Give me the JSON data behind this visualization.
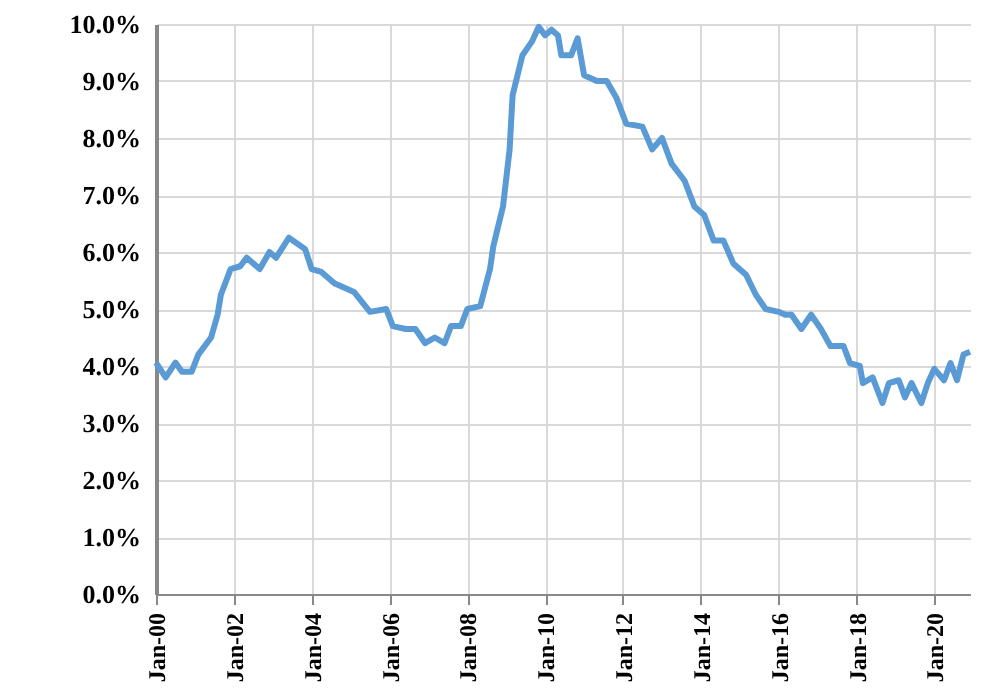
{
  "chart_data": {
    "type": "line",
    "x": [
      "2000-01",
      "2000-04",
      "2000-07",
      "2000-09",
      "2000-12",
      "2001-02",
      "2001-06",
      "2001-08",
      "2001-09",
      "2001-12",
      "2002-03",
      "2002-05",
      "2002-09",
      "2002-12",
      "2003-02",
      "2003-06",
      "2003-11",
      "2004-01",
      "2004-04",
      "2004-08",
      "2005-02",
      "2005-07",
      "2005-12",
      "2006-02",
      "2006-06",
      "2006-09",
      "2006-12",
      "2007-03",
      "2007-06",
      "2007-08",
      "2007-11",
      "2008-01",
      "2008-05",
      "2008-08",
      "2008-09",
      "2008-12",
      "2009-02",
      "2009-03",
      "2009-06",
      "2009-09",
      "2009-11",
      "2010-01",
      "2010-03",
      "2010-05",
      "2010-06",
      "2010-09",
      "2010-11",
      "2011-01",
      "2011-05",
      "2011-08",
      "2011-11",
      "2012-02",
      "2012-07",
      "2012-10",
      "2013-01",
      "2013-04",
      "2013-08",
      "2013-11",
      "2014-02",
      "2014-05",
      "2014-08",
      "2014-11",
      "2015-03",
      "2015-06",
      "2015-09",
      "2016-01",
      "2016-03",
      "2016-05",
      "2016-08",
      "2016-11",
      "2017-02",
      "2017-05",
      "2017-09",
      "2017-11",
      "2018-02",
      "2018-03",
      "2018-06",
      "2018-09",
      "2018-11",
      "2019-02",
      "2019-04",
      "2019-06",
      "2019-09",
      "2019-11",
      "2020-01",
      "2020-04",
      "2020-06",
      "2020-08",
      "2020-10",
      "2020-12"
    ],
    "series": [
      {
        "color": "#5b9bd5",
        "values": [
          4.06,
          3.8,
          4.06,
          3.9,
          3.9,
          4.2,
          4.5,
          4.9,
          5.25,
          5.7,
          5.75,
          5.9,
          5.7,
          6.0,
          5.9,
          6.25,
          6.05,
          5.7,
          5.65,
          5.45,
          5.3,
          4.95,
          5.0,
          4.7,
          4.65,
          4.65,
          4.4,
          4.5,
          4.4,
          4.7,
          4.7,
          5.0,
          5.05,
          5.7,
          6.1,
          6.8,
          7.8,
          8.75,
          9.45,
          9.7,
          9.95,
          9.8,
          9.9,
          9.8,
          9.45,
          9.45,
          9.75,
          9.1,
          9.0,
          9.0,
          8.7,
          8.25,
          8.2,
          7.8,
          8.0,
          7.55,
          7.25,
          6.8,
          6.65,
          6.2,
          6.2,
          5.8,
          5.6,
          5.25,
          5.0,
          4.95,
          4.9,
          4.9,
          4.65,
          4.9,
          4.65,
          4.35,
          4.35,
          4.05,
          4.0,
          3.7,
          3.8,
          3.35,
          3.7,
          3.75,
          3.45,
          3.7,
          3.35,
          3.7,
          3.95,
          3.75,
          4.05,
          3.75,
          4.2,
          4.25
        ]
      }
    ],
    "xlim": [
      "2000-01",
      "2020-12"
    ],
    "xticks": [
      {
        "value": "2000-01",
        "label": "Jan-00"
      },
      {
        "value": "2002-01",
        "label": "Jan-02"
      },
      {
        "value": "2004-01",
        "label": "Jan-04"
      },
      {
        "value": "2006-01",
        "label": "Jan-06"
      },
      {
        "value": "2008-01",
        "label": "Jan-08"
      },
      {
        "value": "2010-01",
        "label": "Jan-10"
      },
      {
        "value": "2012-01",
        "label": "Jan-12"
      },
      {
        "value": "2014-01",
        "label": "Jan-14"
      },
      {
        "value": "2016-01",
        "label": "Jan-16"
      },
      {
        "value": "2018-01",
        "label": "Jan-18"
      },
      {
        "value": "2020-01",
        "label": "Jan-20"
      }
    ],
    "ylim": [
      0,
      10
    ],
    "yticks": [
      {
        "value": 0,
        "label": "0.0%"
      },
      {
        "value": 1,
        "label": "1.0%"
      },
      {
        "value": 2,
        "label": "2.0%"
      },
      {
        "value": 3,
        "label": "3.0%"
      },
      {
        "value": 4,
        "label": "4.0%"
      },
      {
        "value": 5,
        "label": "5.0%"
      },
      {
        "value": 6,
        "label": "6.0%"
      },
      {
        "value": 7,
        "label": "7.0%"
      },
      {
        "value": 8,
        "label": "8.0%"
      },
      {
        "value": 9,
        "label": "9.0%"
      },
      {
        "value": 10,
        "label": "10.0%"
      }
    ],
    "grid": true,
    "marker": "none",
    "line_style": "solid"
  }
}
